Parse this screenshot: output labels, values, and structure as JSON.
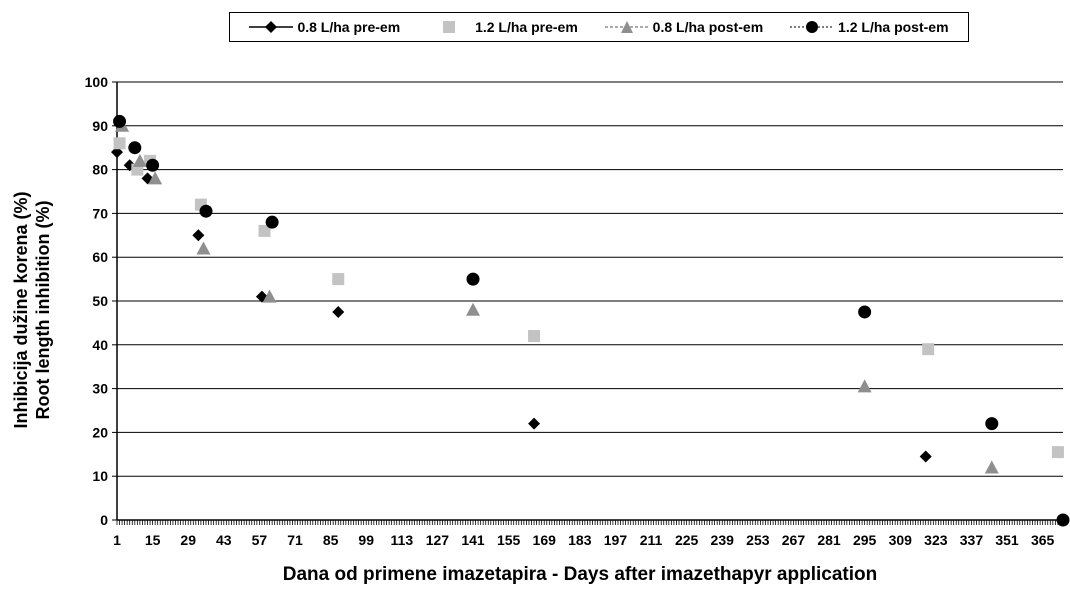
{
  "chart_data": {
    "type": "scatter",
    "xlabel": "Dana od primene imazetapira - Days after imazethapyr application",
    "ylabel": [
      "Inhibicija dužine korena (%)",
      "Root length inhibition (%)"
    ],
    "ylim": [
      0,
      100
    ],
    "yticks": [
      "0",
      "10",
      "20",
      "30",
      "40",
      "50",
      "60",
      "70",
      "80",
      "90",
      "100"
    ],
    "xlim": [
      1,
      373
    ],
    "xticks": [
      "1",
      "15",
      "29",
      "43",
      "57",
      "71",
      "85",
      "99",
      "113",
      "127",
      "141",
      "155",
      "169",
      "183",
      "197",
      "211",
      "225",
      "239",
      "253",
      "267",
      "281",
      "295",
      "309",
      "323",
      "337",
      "351",
      "365"
    ],
    "grid": "horizontal",
    "legend_position": "top",
    "series": [
      {
        "name": "0.8 L/ha pre-em",
        "marker": "diamond",
        "color": "#000000",
        "x": [
          1,
          6,
          13,
          33,
          58,
          88,
          165,
          319,
          373
        ],
        "y": [
          84,
          81,
          78,
          65,
          51,
          47.5,
          22,
          14.5,
          0
        ]
      },
      {
        "name": "1.2 L/ha pre-em",
        "marker": "square",
        "color": "#c3c3c3",
        "x": [
          2,
          9,
          14,
          34,
          59,
          88,
          165,
          320,
          371
        ],
        "y": [
          86,
          80,
          82,
          72,
          66,
          55,
          42,
          39,
          15.5
        ]
      },
      {
        "name": "0.8 L/ha post-em",
        "marker": "triangle",
        "color": "#8f8f8f",
        "x": [
          3,
          10,
          16,
          35,
          61,
          141,
          295,
          345
        ],
        "y": [
          90,
          82,
          78,
          62,
          51,
          48,
          30.5,
          12
        ]
      },
      {
        "name": "1.2 L/ha post-em",
        "marker": "circle",
        "color": "#000000",
        "x": [
          2,
          8,
          15,
          36,
          62,
          141,
          295,
          345,
          373
        ],
        "y": [
          91,
          85,
          81,
          70.5,
          68,
          55,
          47.5,
          22,
          0
        ]
      }
    ]
  }
}
